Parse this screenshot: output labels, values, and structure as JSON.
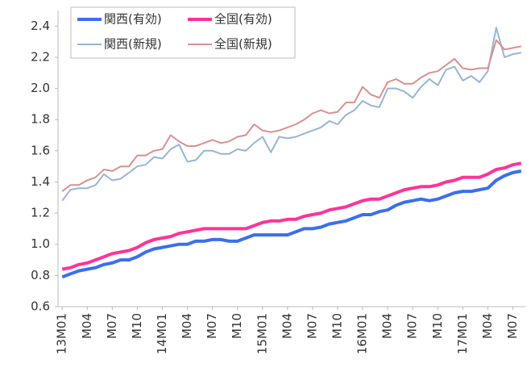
{
  "chart_data": {
    "type": "line",
    "categories": [
      "13M01",
      null,
      null,
      "M04",
      null,
      null,
      "M07",
      null,
      null,
      "M10",
      null,
      null,
      "14M01",
      null,
      null,
      "M04",
      null,
      null,
      "M07",
      null,
      null,
      "M10",
      null,
      null,
      "15M01",
      null,
      null,
      "M04",
      null,
      null,
      "M07",
      null,
      null,
      "M10",
      null,
      null,
      "16M01",
      null,
      null,
      "M04",
      null,
      null,
      "M07",
      null,
      null,
      "M10",
      null,
      null,
      "17M01",
      null,
      null,
      "M04",
      null,
      null,
      "M07",
      null
    ],
    "series": [
      {
        "name": "関西(有効)",
        "color": "#3b6ff0",
        "width": 4,
        "values": [
          0.79,
          0.81,
          0.83,
          0.84,
          0.85,
          0.87,
          0.88,
          0.9,
          0.9,
          0.92,
          0.95,
          0.97,
          0.98,
          0.99,
          1.0,
          1.0,
          1.02,
          1.02,
          1.03,
          1.03,
          1.02,
          1.02,
          1.04,
          1.06,
          1.06,
          1.06,
          1.06,
          1.06,
          1.08,
          1.1,
          1.1,
          1.11,
          1.13,
          1.14,
          1.15,
          1.17,
          1.19,
          1.19,
          1.21,
          1.22,
          1.25,
          1.27,
          1.28,
          1.29,
          1.28,
          1.29,
          1.31,
          1.33,
          1.34,
          1.34,
          1.35,
          1.36,
          1.41,
          1.44,
          1.46,
          1.47
        ]
      },
      {
        "name": "全国(有効)",
        "color": "#ff3399",
        "width": 4,
        "values": [
          0.84,
          0.85,
          0.87,
          0.88,
          0.9,
          0.92,
          0.94,
          0.95,
          0.96,
          0.98,
          1.01,
          1.03,
          1.04,
          1.05,
          1.07,
          1.08,
          1.09,
          1.1,
          1.1,
          1.1,
          1.1,
          1.1,
          1.1,
          1.12,
          1.14,
          1.15,
          1.15,
          1.16,
          1.16,
          1.18,
          1.19,
          1.2,
          1.22,
          1.23,
          1.24,
          1.26,
          1.28,
          1.29,
          1.29,
          1.31,
          1.33,
          1.35,
          1.36,
          1.37,
          1.37,
          1.38,
          1.4,
          1.41,
          1.43,
          1.43,
          1.43,
          1.45,
          1.48,
          1.49,
          1.51,
          1.52
        ]
      },
      {
        "name": "関西(新規)",
        "color": "#98b4d6",
        "width": 2,
        "values": [
          1.28,
          1.35,
          1.36,
          1.36,
          1.38,
          1.45,
          1.41,
          1.42,
          1.46,
          1.5,
          1.51,
          1.56,
          1.55,
          1.61,
          1.64,
          1.53,
          1.54,
          1.6,
          1.6,
          1.58,
          1.58,
          1.61,
          1.6,
          1.65,
          1.69,
          1.59,
          1.69,
          1.68,
          1.69,
          1.71,
          1.73,
          1.75,
          1.79,
          1.77,
          1.83,
          1.86,
          1.92,
          1.89,
          1.88,
          2.0,
          2.0,
          1.98,
          1.94,
          2.01,
          2.06,
          2.02,
          2.12,
          2.14,
          2.05,
          2.08,
          2.04,
          2.11,
          2.39,
          2.2,
          2.22,
          2.23
        ]
      },
      {
        "name": "全国(新規)",
        "color": "#d9908f",
        "width": 2,
        "values": [
          1.34,
          1.38,
          1.38,
          1.41,
          1.43,
          1.48,
          1.47,
          1.5,
          1.5,
          1.57,
          1.57,
          1.6,
          1.61,
          1.7,
          1.66,
          1.63,
          1.63,
          1.65,
          1.67,
          1.65,
          1.66,
          1.69,
          1.7,
          1.77,
          1.73,
          1.72,
          1.73,
          1.75,
          1.77,
          1.8,
          1.84,
          1.86,
          1.84,
          1.85,
          1.91,
          1.91,
          2.01,
          1.96,
          1.94,
          2.04,
          2.06,
          2.03,
          2.03,
          2.07,
          2.1,
          2.11,
          2.15,
          2.19,
          2.13,
          2.12,
          2.13,
          2.13,
          2.31,
          2.25,
          2.26,
          2.27
        ]
      }
    ],
    "ylim": [
      0.6,
      2.5
    ],
    "yticks": [
      0.6,
      0.8,
      {
        "value": 1,
        "label": "1.0"
      },
      1.2,
      1.4,
      1.6,
      1.8,
      {
        "value": 2,
        "label": "2.0"
      },
      2.2,
      2.4
    ],
    "grid": false,
    "legend": "top-left"
  }
}
